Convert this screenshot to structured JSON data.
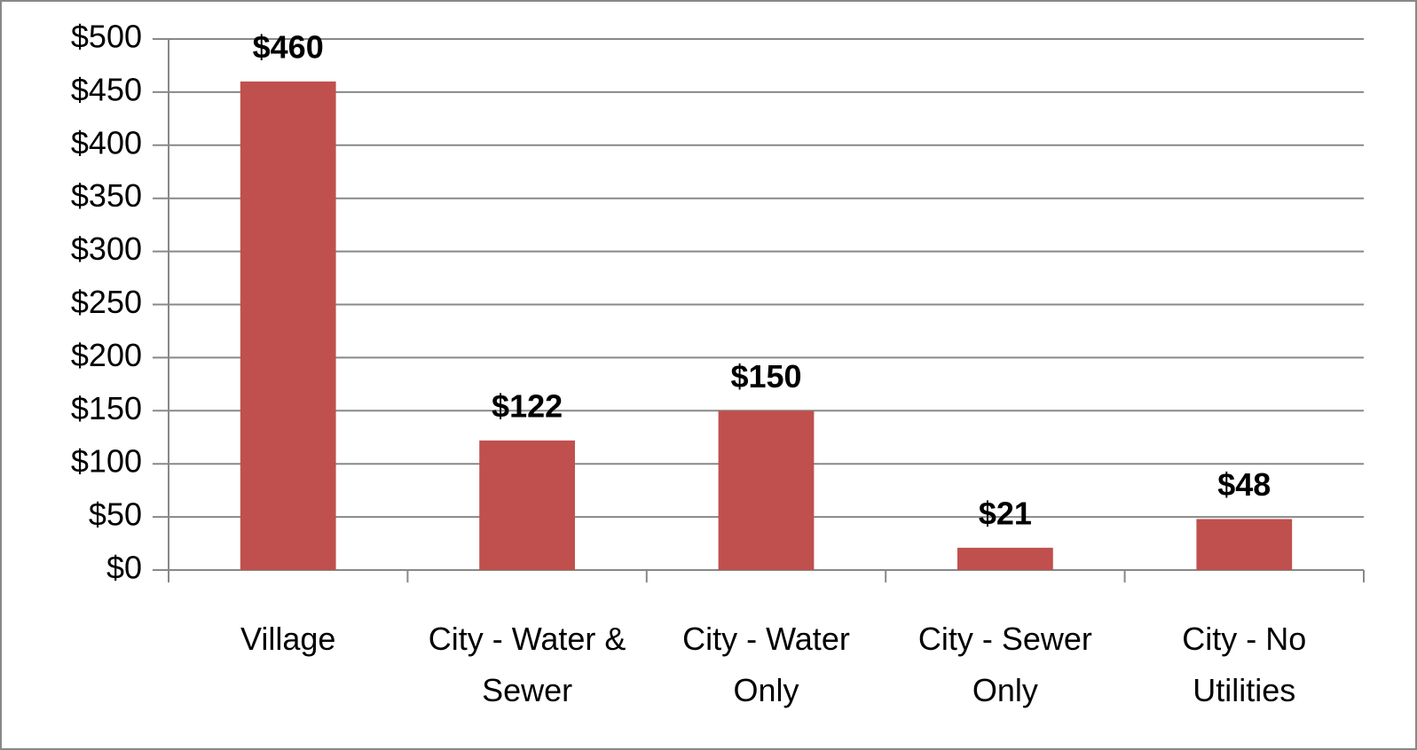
{
  "chart_data": {
    "type": "bar",
    "categories": [
      "Village",
      "City - Water & Sewer",
      "City - Water Only",
      "City - Sewer Only",
      "City - No Utilities"
    ],
    "values": [
      460,
      122,
      150,
      21,
      48
    ],
    "value_labels": [
      "$460",
      "$122",
      "$150",
      "$21",
      "$48"
    ],
    "color": "#c0504d",
    "ylim": [
      0,
      500
    ],
    "yticks": [
      {
        "value": 0,
        "label": "$0"
      },
      {
        "value": 50,
        "label": "$50"
      },
      {
        "value": 100,
        "label": "$100"
      },
      {
        "value": 150,
        "label": "$150"
      },
      {
        "value": 200,
        "label": "$200"
      },
      {
        "value": 250,
        "label": "$250"
      },
      {
        "value": 300,
        "label": "$300"
      },
      {
        "value": 350,
        "label": "$350"
      },
      {
        "value": 400,
        "label": "$400"
      },
      {
        "value": 450,
        "label": "$450"
      },
      {
        "value": 500,
        "label": "$500"
      }
    ],
    "grid": true
  }
}
